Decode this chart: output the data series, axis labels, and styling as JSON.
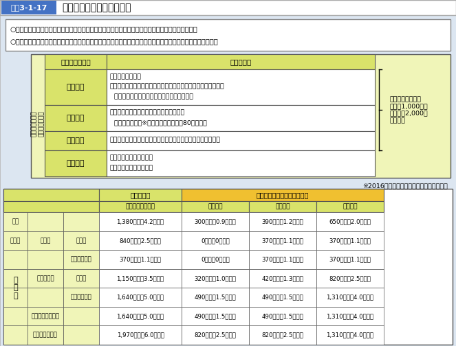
{
  "title_label": "図表3-1-17",
  "title_text": "特定入所者介護サービス費",
  "header_bg": "#4472c4",
  "title_label_bg": "#4472c4",
  "title_label_color": "#ffffff",
  "outer_bg": "#dce6f1",
  "body_bg": "#ffffff",
  "yellow_green": "#d9e36a",
  "yellow_green2": "#e8f0a0",
  "bullet_text1": "○食費・居住費について、利用者負担第１～第３段階の方を対象に、所得に応じた負担限度額を設定",
  "bullet_text2": "○標準的な費用の額（基準費用額）と負担限度額との差額を介護保険から特定入所者介護サービス費として給付",
  "note": "※2016年８月以降は、非課税年金も含む。",
  "upper_table": {
    "col1": "利用者負担段階",
    "col2": "主な対象者",
    "rows": [
      {
        "stage": "第１段階",
        "content": "・生活保護受給者\n・世帯（世帯を分離している配偶者を含む。以下同じ。）全員が\n  市町村民税非課税である老齢福祉年金受給者"
      },
      {
        "stage": "第２段階",
        "content": "・世帯全員が市町村民税非課税であって、\n  年金収入金額（※）＋合計所得金額が80万円以下"
      },
      {
        "stage": "第３段階",
        "content": "・世帯全員が市町村民税非課税であって、第２段階該当者以外"
      },
      {
        "stage": "第４段階",
        "content": "・世帯に課税者がいる者\n・市町村民税本人課税者"
      }
    ],
    "side_note": "かつ、預貯金等が\n単身で1,000万円\n（夫婦で2,000万\n円）以下"
  },
  "lower_table": {
    "header1": "基準費用額",
    "header1b": "（日額（月額））",
    "header2": "負担限度額（日額（月額））",
    "col_s1": "第１段階",
    "col_s2": "第２段階",
    "col_s3": "第３段階",
    "rows": [
      {
        "cat1": "食費",
        "cat2": "",
        "cat3": "",
        "base": "1,380円　（4.2万円）",
        "s1": "300円　（0.9万円）",
        "s2": "390円　（1.2万円）",
        "s3": "650円　（2.0万円）"
      },
      {
        "cat1": "居住費",
        "cat2": "多床室",
        "cat3": "特養等",
        "base": "840円　（2.5万円）",
        "s1": "0円　（0万円）",
        "s2": "370円　（1.1万円）",
        "s3": "370円　（1.1万円）"
      },
      {
        "cat1": "",
        "cat2": "",
        "cat3": "老健・療養等",
        "base": "370円　（1.1万円）",
        "s1": "0円　（0万円）",
        "s2": "370円　（1.1万円）",
        "s3": "370円　（1.1万円）"
      },
      {
        "cat1": "",
        "cat2": "従来型個室",
        "cat3": "特養等",
        "base": "1,150円　（3.5万円）",
        "s1": "320円　（1.0万円）",
        "s2": "420円　（1.3万円）",
        "s3": "820円　（2.5万円）"
      },
      {
        "cat1": "",
        "cat2": "",
        "cat3": "老健・療養等",
        "base": "1,640円　（5.0万円）",
        "s1": "490円　（1.5万円）",
        "s2": "490円　（1.5万円）",
        "s3": "1,310円　（4.0万円）"
      },
      {
        "cat1": "",
        "cat2": "ユニット型準個室",
        "cat3": "",
        "base": "1,640円　（5.0万円）",
        "s1": "490円　（1.5万円）",
        "s2": "490円　（1.5万円）",
        "s3": "1,310円　（4.0万円）"
      },
      {
        "cat1": "",
        "cat2": "ユニット型個室",
        "cat3": "",
        "base": "1,970円　（6.0万円）",
        "s1": "820円　（2.5万円）",
        "s2": "820円　（2.5万円）",
        "s3": "1,310円　（4.0万円）"
      }
    ]
  }
}
